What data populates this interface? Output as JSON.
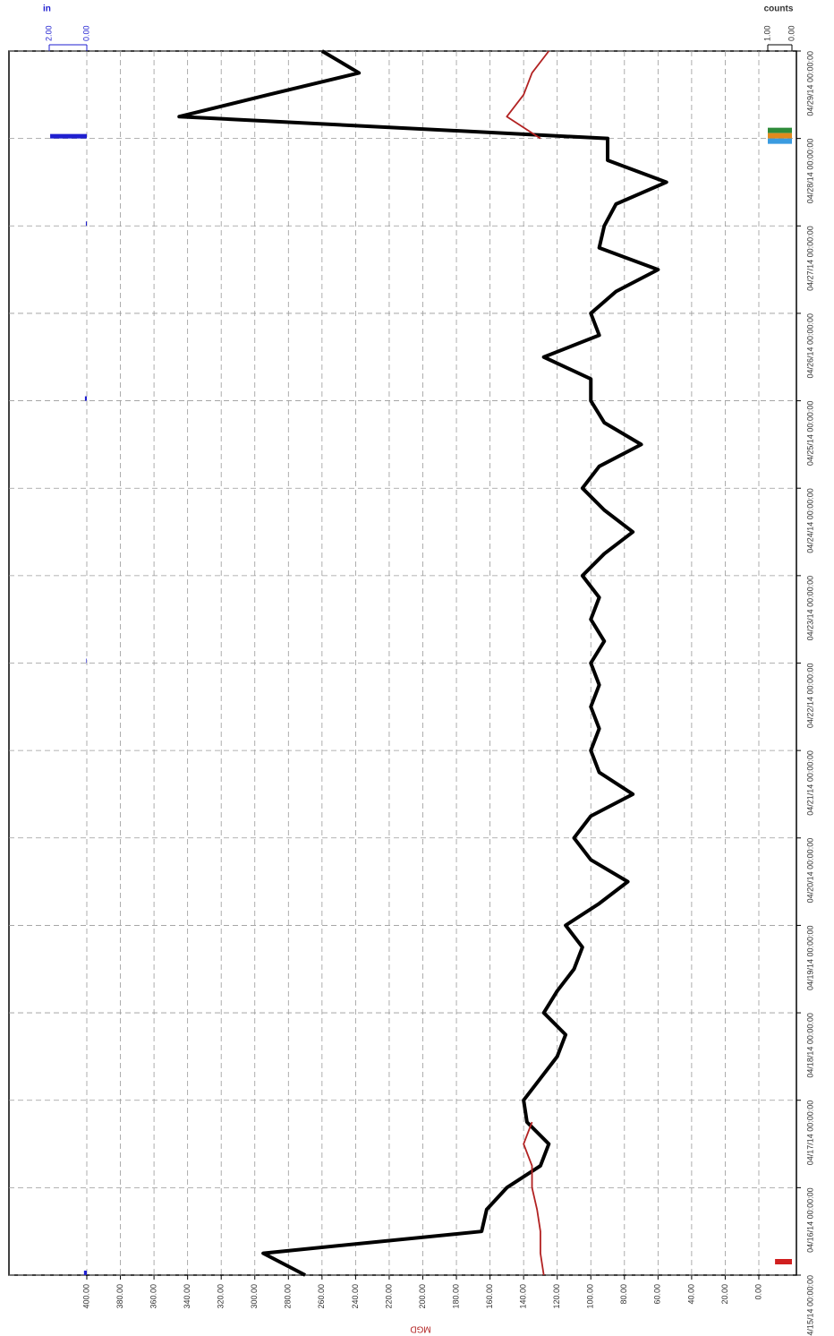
{
  "chart_data": {
    "type": "line",
    "y_axis_title": "MGD",
    "y2_axis_title": "in",
    "y3_axis_title": "counts",
    "x": [
      "04/15/14 00:00:00",
      "04/15/14 06:00:00",
      "04/15/14 12:00:00",
      "04/15/14 18:00:00",
      "04/16/14 00:00:00",
      "04/16/14 06:00:00",
      "04/16/14 12:00:00",
      "04/16/14 18:00:00",
      "04/17/14 00:00:00",
      "04/17/14 06:00:00",
      "04/17/14 12:00:00",
      "04/17/14 18:00:00",
      "04/18/14 00:00:00",
      "04/18/14 06:00:00",
      "04/18/14 12:00:00",
      "04/18/14 18:00:00",
      "04/19/14 00:00:00",
      "04/19/14 06:00:00",
      "04/19/14 12:00:00",
      "04/19/14 18:00:00",
      "04/20/14 00:00:00",
      "04/20/14 06:00:00",
      "04/20/14 12:00:00",
      "04/20/14 18:00:00",
      "04/21/14 00:00:00",
      "04/21/14 06:00:00",
      "04/21/14 12:00:00",
      "04/21/14 18:00:00",
      "04/22/14 00:00:00",
      "04/22/14 06:00:00",
      "04/22/14 12:00:00",
      "04/22/14 18:00:00",
      "04/23/14 00:00:00",
      "04/23/14 06:00:00",
      "04/23/14 12:00:00",
      "04/23/14 18:00:00",
      "04/24/14 00:00:00",
      "04/24/14 06:00:00",
      "04/24/14 12:00:00",
      "04/24/14 18:00:00",
      "04/25/14 00:00:00",
      "04/25/14 06:00:00",
      "04/25/14 12:00:00",
      "04/25/14 18:00:00",
      "04/26/14 00:00:00",
      "04/26/14 06:00:00",
      "04/26/14 12:00:00",
      "04/26/14 18:00:00",
      "04/27/14 00:00:00",
      "04/27/14 06:00:00",
      "04/27/14 12:00:00",
      "04/27/14 18:00:00",
      "04/28/14 00:00:00",
      "04/28/14 06:00:00",
      "04/28/14 12:00:00",
      "04/28/14 18:00:00",
      "04/29/14 00:00:00"
    ],
    "xlim": [
      "04/15/14 00:00:00",
      "04/29/14 00:00:00"
    ],
    "xticks": [
      "04/15/14 00:00:00",
      "04/16/14 00:00:00",
      "04/17/14 00:00:00",
      "04/18/14 00:00:00",
      "04/19/14 00:00:00",
      "04/20/14 00:00:00",
      "04/21/14 00:00:00",
      "04/22/14 00:00:00",
      "04/23/14 00:00:00",
      "04/24/14 00:00:00",
      "04/25/14 00:00:00",
      "04/26/14 00:00:00",
      "04/27/14 00:00:00",
      "04/28/14 00:00:00",
      "04/29/14 00:00:00"
    ],
    "ylim": [
      0,
      400
    ],
    "yticks": [
      {
        "value": 0,
        "label": "0.00"
      },
      {
        "value": 20,
        "label": "20.00"
      },
      {
        "value": 40,
        "label": "40.00"
      },
      {
        "value": 60,
        "label": "60.00"
      },
      {
        "value": 80,
        "label": "80.00"
      },
      {
        "value": 100,
        "label": "100.00"
      },
      {
        "value": 120,
        "label": "120.00"
      },
      {
        "value": 140,
        "label": "140.00"
      },
      {
        "value": 160,
        "label": "160.00"
      },
      {
        "value": 180,
        "label": "180.00"
      },
      {
        "value": 200,
        "label": "200.00"
      },
      {
        "value": 220,
        "label": "220.00"
      },
      {
        "value": 240,
        "label": "240.00"
      },
      {
        "value": 260,
        "label": "260.00"
      },
      {
        "value": 280,
        "label": "280.00"
      },
      {
        "value": 300,
        "label": "300.00"
      },
      {
        "value": 320,
        "label": "320.00"
      },
      {
        "value": 340,
        "label": "340.00"
      },
      {
        "value": 360,
        "label": "360.00"
      },
      {
        "value": 380,
        "label": "380.00"
      },
      {
        "value": 400,
        "label": "400.00"
      }
    ],
    "y2lim": [
      0,
      2
    ],
    "y2ticks": [
      {
        "value": 2,
        "label": "2.00"
      },
      {
        "value": 0,
        "label": "0.00"
      }
    ],
    "y3lim": [
      0,
      1
    ],
    "y3ticks": [
      {
        "value": 1,
        "label": "1.00"
      },
      {
        "value": 0,
        "label": "0.00"
      }
    ],
    "grid": true,
    "series": [
      {
        "color": "#000000",
        "kind": "line",
        "values": [
          270,
          295,
          165,
          162,
          150,
          130,
          125,
          138,
          140,
          130,
          120,
          115,
          128,
          120,
          110,
          105,
          115,
          95,
          78,
          100,
          110,
          100,
          75,
          95,
          100,
          95,
          100,
          95,
          100,
          92,
          100,
          95,
          105,
          92,
          75,
          92,
          105,
          95,
          70,
          92,
          100,
          100,
          128,
          95,
          100,
          85,
          60,
          95,
          92,
          85,
          55,
          90,
          90,
          345,
          292,
          238,
          260
        ]
      },
      {
        "color": "#b22222",
        "kind": "line",
        "values": [
          128,
          130,
          130,
          132,
          135,
          135,
          140,
          135,
          null,
          null,
          null,
          null,
          null,
          null,
          null,
          null,
          null,
          null,
          null,
          null,
          null,
          null,
          null,
          null,
          null,
          null,
          null,
          null,
          null,
          null,
          null,
          null,
          null,
          null,
          null,
          null,
          null,
          null,
          null,
          null,
          null,
          null,
          null,
          null,
          null,
          null,
          null,
          null,
          null,
          null,
          null,
          null,
          130,
          150,
          140,
          135,
          125
        ]
      },
      {
        "color": "#1f1fd0",
        "kind": "bar",
        "axis": "y2",
        "values": [
          0.15,
          null,
          null,
          null,
          null,
          null,
          null,
          null,
          null,
          null,
          null,
          null,
          null,
          null,
          null,
          null,
          null,
          null,
          null,
          null,
          null,
          null,
          null,
          null,
          null,
          null,
          null,
          null,
          0.03,
          null,
          null,
          null,
          null,
          null,
          null,
          null,
          null,
          null,
          null,
          null,
          0.1,
          null,
          null,
          null,
          null,
          null,
          null,
          null,
          0.05,
          null,
          null,
          null,
          1.95,
          null,
          null,
          null,
          null
        ]
      },
      {
        "color": "#d01f1f",
        "kind": "bar",
        "axis": "y3",
        "values": [
          0.7,
          null,
          null,
          null,
          null,
          null,
          null,
          null,
          null,
          null,
          null,
          null,
          null,
          null,
          null,
          null,
          null,
          null,
          null,
          null,
          null,
          null,
          null,
          null,
          null,
          null,
          null,
          null,
          null,
          null,
          null,
          null,
          null,
          null,
          null,
          null,
          null,
          null,
          null,
          null,
          null,
          null,
          null,
          null,
          null,
          null,
          null,
          null,
          null,
          null,
          null,
          null,
          null,
          null,
          null,
          null,
          null
        ]
      },
      {
        "color": "#2e8b3a",
        "kind": "bar",
        "axis": "y3",
        "values": [
          null,
          null,
          null,
          null,
          null,
          null,
          null,
          null,
          null,
          null,
          null,
          null,
          null,
          null,
          null,
          null,
          null,
          null,
          null,
          null,
          null,
          null,
          null,
          null,
          null,
          null,
          null,
          null,
          null,
          null,
          null,
          null,
          null,
          null,
          null,
          null,
          null,
          null,
          null,
          null,
          null,
          null,
          null,
          null,
          null,
          null,
          null,
          null,
          null,
          null,
          null,
          null,
          1,
          null,
          null,
          null,
          null
        ]
      },
      {
        "color": "#e08a1e",
        "kind": "bar",
        "axis": "y3",
        "values": [
          null,
          null,
          null,
          null,
          null,
          null,
          null,
          null,
          null,
          null,
          null,
          null,
          null,
          null,
          null,
          null,
          null,
          null,
          null,
          null,
          null,
          null,
          null,
          null,
          null,
          null,
          null,
          null,
          null,
          null,
          null,
          null,
          null,
          null,
          null,
          null,
          null,
          null,
          null,
          null,
          null,
          null,
          null,
          null,
          null,
          null,
          null,
          null,
          null,
          null,
          null,
          null,
          1,
          null,
          null,
          null,
          null
        ]
      },
      {
        "color": "#3a9be0",
        "kind": "bar",
        "axis": "y3",
        "values": [
          null,
          null,
          null,
          null,
          null,
          null,
          null,
          null,
          null,
          null,
          null,
          null,
          null,
          null,
          null,
          null,
          null,
          null,
          null,
          null,
          null,
          null,
          null,
          null,
          null,
          null,
          null,
          null,
          null,
          null,
          null,
          null,
          null,
          null,
          null,
          null,
          null,
          null,
          null,
          null,
          null,
          null,
          null,
          null,
          null,
          null,
          null,
          null,
          null,
          null,
          null,
          null,
          1,
          null,
          null,
          null,
          null
        ]
      }
    ]
  }
}
